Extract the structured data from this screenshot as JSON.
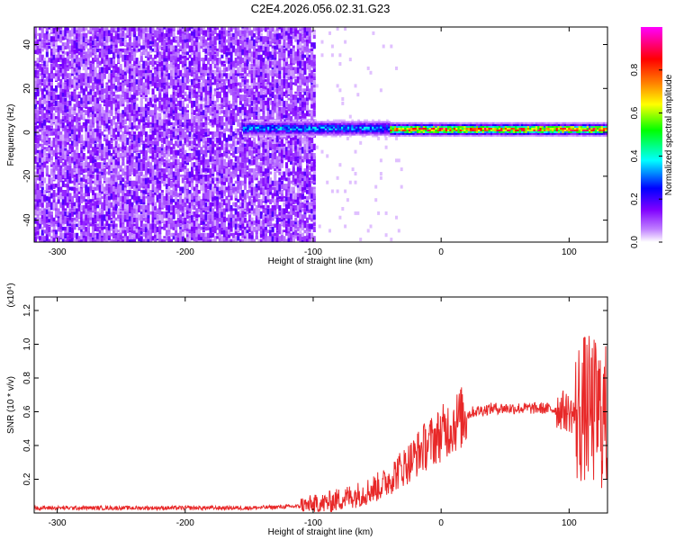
{
  "title": "C2E4.2026.056.02.31.G23",
  "chart_data": [
    {
      "type": "heatmap",
      "title": "C2E4.2026.056.02.31.G23",
      "xlabel": "Height of straight line (km)",
      "ylabel": "Frequency (Hz)",
      "xlim": [
        -318,
        130
      ],
      "ylim": [
        -50,
        48
      ],
      "x_ticks": [
        -300,
        -200,
        -100,
        0,
        100
      ],
      "x_tick_labels": [
        "-300",
        "-200",
        "-100",
        "0",
        "100"
      ],
      "y_ticks": [
        40,
        20,
        0,
        -20,
        -40
      ],
      "y_tick_labels": [
        "40",
        "20",
        "0",
        "-20",
        "-40"
      ],
      "colorbar": {
        "label": "Normalized spectral amplitude",
        "range": [
          0,
          1
        ],
        "ticks": [
          0.0,
          0.2,
          0.4,
          0.6,
          0.8
        ],
        "tick_labels": [
          "0.0",
          "0.2",
          "0.4",
          "0.6",
          "0.8"
        ],
        "colormap": [
          "#ffffff",
          "#8000ff",
          "#0000ff",
          "#00ffff",
          "#00ff00",
          "#ffff00",
          "#ff8000",
          "#ff0000",
          "#ff00ff"
        ]
      },
      "regions": [
        {
          "desc": "noise",
          "x_range": [
            -318,
            -100
          ],
          "freq_range": [
            -50,
            48
          ],
          "amplitude": 0.1
        },
        {
          "desc": "signal onset",
          "x_range": [
            -155,
            -40
          ],
          "freq_center": 1.5,
          "amplitude": 0.35
        },
        {
          "desc": "signal strong",
          "x_range": [
            -40,
            130
          ],
          "freq_center": 1,
          "amplitude": 0.75
        }
      ]
    },
    {
      "type": "line",
      "xlabel": "Height of straight line (km)",
      "ylabel": "SNR (10 * v/v)",
      "y_scale_label": "(x10⁴)",
      "xlim": [
        -318,
        130
      ],
      "ylim": [
        0,
        1.28
      ],
      "x_ticks": [
        -300,
        -200,
        -100,
        0,
        100
      ],
      "x_tick_labels": [
        "-300",
        "-200",
        "-100",
        "0",
        "100"
      ],
      "y_ticks": [
        0.2,
        0.4,
        0.6,
        0.8,
        1.0,
        1.2
      ],
      "y_tick_labels": [
        "0.2",
        "0.4",
        "0.6",
        "0.8",
        "1.0",
        "1.2"
      ],
      "color": "#e82828",
      "series": [
        {
          "x": [
            -318,
            -250,
            -150,
            -110,
            -95,
            -80,
            -60,
            -45,
            -35,
            -25,
            -15,
            -5,
            5,
            15,
            25,
            40,
            60,
            80,
            95,
            105,
            112,
            118,
            125,
            130
          ],
          "values": [
            0.03,
            0.03,
            0.03,
            0.04,
            0.05,
            0.08,
            0.12,
            0.17,
            0.24,
            0.3,
            0.38,
            0.44,
            0.5,
            0.56,
            0.6,
            0.62,
            0.62,
            0.62,
            0.61,
            0.58,
            0.62,
            0.6,
            0.58,
            0.55
          ]
        }
      ]
    }
  ]
}
